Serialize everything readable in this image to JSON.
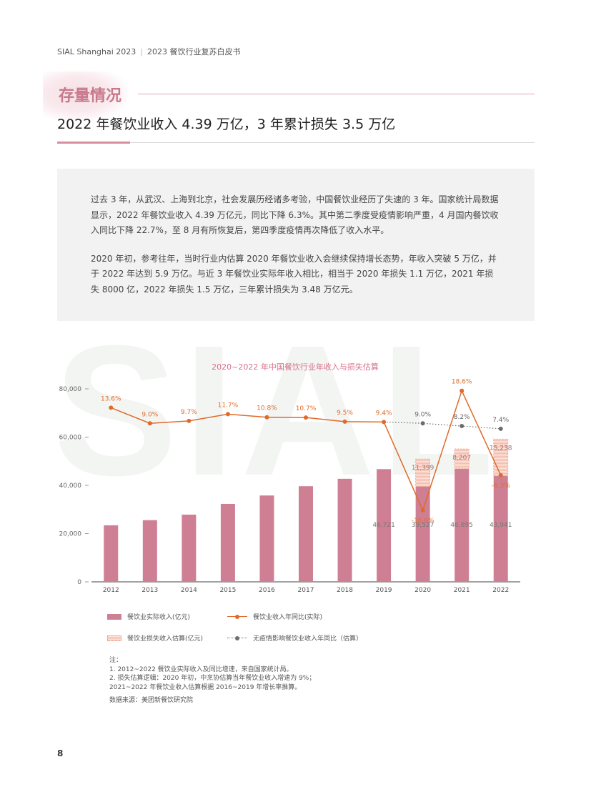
{
  "header": {
    "brand": "SIAL Shanghai 2023",
    "separator": "|",
    "doc": "2023 餐饮行业复苏白皮书"
  },
  "section": {
    "title": "存量情况",
    "headline": "2022 年餐饮业收入 4.39 万亿，3 年累计损失 3.5 万亿"
  },
  "summary": {
    "p1": "过去 3 年，从武汉、上海到北京，社会发展历经诸多考验，中国餐饮业经历了失速的 3 年。国家统计局数据显示，2022 年餐饮业收入 4.39 万亿元，同比下降 6.3%。其中第二季度受疫情影响严重，4 月国内餐饮收入同比下降 22.7%，至 8 月有所恢复后，第四季度疫情再次降低了收入水平。",
    "p2": "2020 年初，参考往年，当时行业内估算 2020 年餐饮业收入会继续保持增长态势，年收入突破 5 万亿，并于 2022 年达到 5.9 万亿。与近 3 年餐饮业实际年收入相比，相当于 2020 年损失 1.1 万亿，2021 年损失 8000 亿，2022 年损失 1.5 万亿，三年累计损失为 3.48 万亿元。"
  },
  "watermark": "SIAL",
  "chart_data": {
    "type": "bar",
    "title": "2020~2022 年中国餐饮行业年收入与损失估算",
    "categories": [
      "2012",
      "2013",
      "2014",
      "2015",
      "2016",
      "2017",
      "2018",
      "2019",
      "2020",
      "2021",
      "2022"
    ],
    "ylim": [
      0,
      80000
    ],
    "yticks": [
      0,
      20000,
      40000,
      60000,
      80000
    ],
    "ytick_labels": [
      "0",
      "20,000",
      "40,000",
      "60,000",
      "80,000"
    ],
    "grid": false,
    "series": [
      {
        "name": "餐饮业实际收入(亿元)",
        "kind": "bar",
        "color": "#cf7f94",
        "values": [
          23448,
          25569,
          27860,
          32310,
          35799,
          39644,
          42716,
          46721,
          39527,
          46895,
          43941
        ],
        "value_labels": [
          "",
          "",
          "",
          "",
          "",
          "",
          "",
          "46,721",
          "39,527",
          "46,895",
          "43,941"
        ]
      },
      {
        "name": "餐饮业损失收入估算(亿元)",
        "kind": "stacked-bar",
        "color": "#f6c2b4",
        "values": [
          null,
          null,
          null,
          null,
          null,
          null,
          null,
          null,
          11399,
          8207,
          15238
        ],
        "value_labels": [
          "",
          "",
          "",
          "",
          "",
          "",
          "",
          "",
          "11,399",
          "8,207",
          "15,238"
        ]
      },
      {
        "name": "餐饮业收入年同比(实际)",
        "kind": "line",
        "color": "#e06a2a",
        "values": [
          13.6,
          9.0,
          9.7,
          11.7,
          10.8,
          10.7,
          9.5,
          9.4,
          -16.6,
          18.6,
          -6.3
        ],
        "point_labels": [
          "13.6%",
          "9.0%",
          "9.7%",
          "11.7%",
          "10.8%",
          "10.7%",
          "9.5%",
          "9.4%",
          "-16.6%",
          "18.6%",
          "-6.3%"
        ]
      },
      {
        "name": "无疫情影响餐饮业收入年同比（估算）",
        "kind": "dotted-line",
        "color": "#6d6d6d",
        "values": [
          null,
          null,
          null,
          null,
          null,
          null,
          null,
          9.4,
          9.0,
          8.2,
          7.4
        ],
        "point_labels": [
          "",
          "",
          "",
          "",
          "",
          "",
          "",
          "",
          "9.0%",
          "8.2%",
          "7.4%"
        ]
      }
    ],
    "legend_position": "bottom"
  },
  "legend": {
    "actual": "餐饮业实际收入(亿元)",
    "yoy": "餐饮业收入年同比(实际)",
    "loss": "餐饮业损失收入估算(亿元)",
    "est": "无疫情影响餐饮业收入年同比（估算）"
  },
  "notes": {
    "title": "注：",
    "n1": "1. 2012~2022 餐饮业实际收入及同比增速，来自国家统计局。",
    "n2a": "2. 损失估算逻辑：2020 年初，中烹协估算当年餐饮业收入增速为 9%；",
    "n2b": "2021~2022 年餐饮业收入估算根据 2016~2019 年增长率推算。",
    "source": "数据来源：美团新餐饮研究院"
  },
  "page_number": "8",
  "colors": {
    "accent": "#d98ea0",
    "bar": "#cf7f94",
    "loss": "#f6c2b4",
    "yoy_line": "#e06a2a",
    "est_line": "#6d6d6d"
  }
}
